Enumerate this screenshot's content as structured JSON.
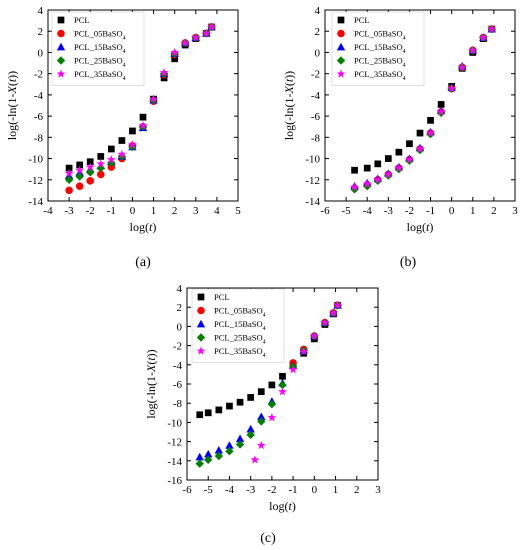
{
  "chart_data": [
    {
      "type": "scatter",
      "panel_label": "(a)",
      "xlabel_pre": "log(",
      "xlabel_var": "t",
      "xlabel_post": ")",
      "ylabel_pre": "log(-ln(1-",
      "ylabel_var": "X",
      "ylabel_mid": "(",
      "ylabel_var2": "t",
      "ylabel_post": "))",
      "xlim": [
        -4,
        5
      ],
      "ylim": [
        -14,
        4
      ],
      "xticks": [
        -4,
        -3,
        -2,
        -1,
        0,
        1,
        2,
        3,
        4,
        5
      ],
      "yticks": [
        -14,
        -12,
        -10,
        -8,
        -6,
        -4,
        -2,
        0,
        2,
        4
      ],
      "legend_position": "top-left",
      "series": [
        {
          "name": "PCL",
          "marker": "square",
          "color": "#000000",
          "points": [
            [
              -3.0,
              -10.9
            ],
            [
              -2.5,
              -10.6
            ],
            [
              -2.0,
              -10.3
            ],
            [
              -1.5,
              -9.8
            ],
            [
              -1.0,
              -9.1
            ],
            [
              -0.5,
              -8.3
            ],
            [
              0.0,
              -7.4
            ],
            [
              0.5,
              -6.1
            ],
            [
              1.0,
              -4.4
            ],
            [
              1.5,
              -2.4
            ],
            [
              2.0,
              -0.6
            ],
            [
              2.5,
              0.7
            ],
            [
              3.0,
              1.3
            ],
            [
              3.5,
              1.8
            ],
            [
              3.75,
              2.4
            ]
          ]
        },
        {
          "name": "PCL_05BaSO4",
          "marker": "circle",
          "color": "#ff0000",
          "points": [
            [
              -3.0,
              -13.0
            ],
            [
              -2.5,
              -12.6
            ],
            [
              -2.0,
              -12.1
            ],
            [
              -1.5,
              -11.5
            ],
            [
              -1.0,
              -10.8
            ],
            [
              -0.5,
              -10.0
            ],
            [
              0.0,
              -8.8
            ],
            [
              0.5,
              -7.0
            ],
            [
              1.0,
              -4.6
            ],
            [
              1.5,
              -2.1
            ],
            [
              2.0,
              -0.2
            ],
            [
              2.5,
              0.9
            ],
            [
              3.0,
              1.4
            ],
            [
              3.5,
              1.8
            ],
            [
              3.75,
              2.4
            ]
          ]
        },
        {
          "name": "PCL_15BaSO4",
          "marker": "triangle",
          "color": "#0000ff",
          "points": [
            [
              -3.0,
              -11.6
            ],
            [
              -2.5,
              -11.3
            ],
            [
              -2.0,
              -11.0
            ],
            [
              -1.5,
              -10.7
            ],
            [
              -1.0,
              -10.3
            ],
            [
              -0.5,
              -9.8
            ],
            [
              0.0,
              -8.9
            ],
            [
              0.5,
              -7.1
            ],
            [
              1.0,
              -4.5
            ],
            [
              1.5,
              -2.0
            ],
            [
              2.0,
              -0.1
            ],
            [
              2.5,
              0.9
            ],
            [
              3.0,
              1.4
            ],
            [
              3.5,
              1.8
            ],
            [
              3.75,
              2.4
            ]
          ]
        },
        {
          "name": "PCL_25BaSO4",
          "marker": "diamond",
          "color": "#008000",
          "points": [
            [
              -3.0,
              -12.0
            ],
            [
              -2.5,
              -11.7
            ],
            [
              -2.0,
              -11.3
            ],
            [
              -1.5,
              -10.9
            ],
            [
              -1.0,
              -10.4
            ],
            [
              -0.5,
              -9.8
            ],
            [
              0.0,
              -8.9
            ],
            [
              0.5,
              -7.0
            ],
            [
              1.0,
              -4.5
            ],
            [
              1.5,
              -2.0
            ],
            [
              2.0,
              -0.1
            ],
            [
              2.5,
              0.9
            ],
            [
              3.0,
              1.4
            ],
            [
              3.5,
              1.8
            ],
            [
              3.75,
              2.4
            ]
          ]
        },
        {
          "name": "PCL_35BaSO4",
          "marker": "star",
          "color": "#ff00ff",
          "points": [
            [
              -3.0,
              -11.4
            ],
            [
              -2.5,
              -11.1
            ],
            [
              -2.0,
              -10.8
            ],
            [
              -1.5,
              -10.5
            ],
            [
              -1.0,
              -10.1
            ],
            [
              -0.5,
              -9.6
            ],
            [
              0.0,
              -8.7
            ],
            [
              0.5,
              -6.9
            ],
            [
              1.0,
              -4.4
            ],
            [
              1.5,
              -1.9
            ],
            [
              2.0,
              0.0
            ],
            [
              2.5,
              0.9
            ],
            [
              3.0,
              1.4
            ],
            [
              3.5,
              1.8
            ],
            [
              3.75,
              2.4
            ]
          ]
        }
      ]
    },
    {
      "type": "scatter",
      "panel_label": "(b)",
      "xlabel_pre": "log(",
      "xlabel_var": "t",
      "xlabel_post": ")",
      "ylabel_pre": "log(-ln(1-",
      "ylabel_var": "X",
      "ylabel_mid": "(",
      "ylabel_var2": "t",
      "ylabel_post": "))",
      "xlim": [
        -6,
        3
      ],
      "ylim": [
        -14,
        4
      ],
      "xticks": [
        -6,
        -5,
        -4,
        -3,
        -2,
        -1,
        0,
        1,
        2,
        3
      ],
      "yticks": [
        -14,
        -12,
        -10,
        -8,
        -6,
        -4,
        -2,
        0,
        2,
        4
      ],
      "legend_position": "top-left",
      "series": [
        {
          "name": "PCL",
          "marker": "square",
          "color": "#000000",
          "points": [
            [
              -4.6,
              -11.1
            ],
            [
              -4.0,
              -10.9
            ],
            [
              -3.5,
              -10.5
            ],
            [
              -3.0,
              -10.0
            ],
            [
              -2.5,
              -9.4
            ],
            [
              -2.0,
              -8.6
            ],
            [
              -1.5,
              -7.6
            ],
            [
              -1.0,
              -6.4
            ],
            [
              -0.5,
              -4.9
            ],
            [
              0.0,
              -3.2
            ],
            [
              0.5,
              -1.5
            ],
            [
              1.0,
              0.0
            ],
            [
              1.5,
              1.3
            ],
            [
              1.9,
              2.2
            ]
          ]
        },
        {
          "name": "PCL_05BaSO4",
          "marker": "circle",
          "color": "#ff0000",
          "points": [
            [
              -4.6,
              -12.8
            ],
            [
              -4.0,
              -12.5
            ],
            [
              -3.5,
              -12.0
            ],
            [
              -3.0,
              -11.5
            ],
            [
              -2.5,
              -10.9
            ],
            [
              -2.0,
              -10.1
            ],
            [
              -1.5,
              -9.1
            ],
            [
              -1.0,
              -7.6
            ],
            [
              -0.5,
              -5.6
            ],
            [
              0.0,
              -3.4
            ],
            [
              0.5,
              -1.4
            ],
            [
              1.0,
              0.2
            ],
            [
              1.5,
              1.4
            ],
            [
              1.9,
              2.2
            ]
          ]
        },
        {
          "name": "PCL_15BaSO4",
          "marker": "triangle",
          "color": "#0000ff",
          "points": [
            [
              -4.6,
              -12.6
            ],
            [
              -4.0,
              -12.3
            ],
            [
              -3.5,
              -11.9
            ],
            [
              -3.0,
              -11.4
            ],
            [
              -2.5,
              -10.8
            ],
            [
              -2.0,
              -10.0
            ],
            [
              -1.5,
              -9.0
            ],
            [
              -1.0,
              -7.5
            ],
            [
              -0.5,
              -5.5
            ],
            [
              0.0,
              -3.3
            ],
            [
              0.5,
              -1.3
            ],
            [
              1.0,
              0.2
            ],
            [
              1.5,
              1.4
            ],
            [
              1.9,
              2.2
            ]
          ]
        },
        {
          "name": "PCL_25BaSO4",
          "marker": "diamond",
          "color": "#008000",
          "points": [
            [
              -4.6,
              -12.9
            ],
            [
              -4.0,
              -12.6
            ],
            [
              -3.5,
              -12.1
            ],
            [
              -3.0,
              -11.6
            ],
            [
              -2.5,
              -11.0
            ],
            [
              -2.0,
              -10.2
            ],
            [
              -1.5,
              -9.2
            ],
            [
              -1.0,
              -7.7
            ],
            [
              -0.5,
              -5.7
            ],
            [
              0.0,
              -3.4
            ],
            [
              0.5,
              -1.4
            ],
            [
              1.0,
              0.2
            ],
            [
              1.5,
              1.4
            ],
            [
              1.9,
              2.2
            ]
          ]
        },
        {
          "name": "PCL_35BaSO4",
          "marker": "star",
          "color": "#ff00ff",
          "points": [
            [
              -4.6,
              -12.7
            ],
            [
              -4.0,
              -12.4
            ],
            [
              -3.5,
              -12.0
            ],
            [
              -3.0,
              -11.5
            ],
            [
              -2.5,
              -10.9
            ],
            [
              -2.0,
              -10.1
            ],
            [
              -1.5,
              -9.1
            ],
            [
              -1.0,
              -7.6
            ],
            [
              -0.5,
              -5.6
            ],
            [
              0.0,
              -3.4
            ],
            [
              0.5,
              -1.4
            ],
            [
              1.0,
              0.2
            ],
            [
              1.5,
              1.4
            ],
            [
              1.9,
              2.2
            ]
          ]
        }
      ]
    },
    {
      "type": "scatter",
      "panel_label": "(c)",
      "xlabel_pre": "log(",
      "xlabel_var": "t",
      "xlabel_post": ")",
      "ylabel_pre": "log(-ln(1-",
      "ylabel_var": "X",
      "ylabel_mid": "(",
      "ylabel_var2": "t",
      "ylabel_post": "))",
      "xlim": [
        -6,
        3
      ],
      "ylim": [
        -16,
        4
      ],
      "xticks": [
        -6,
        -5,
        -4,
        -3,
        -2,
        -1,
        0,
        1,
        2,
        3
      ],
      "yticks": [
        -16,
        -14,
        -12,
        -10,
        -8,
        -6,
        -4,
        -2,
        0,
        2,
        4
      ],
      "legend_position": "top-left",
      "series": [
        {
          "name": "PCL",
          "marker": "square",
          "color": "#000000",
          "points": [
            [
              -5.4,
              -9.2
            ],
            [
              -5.0,
              -9.0
            ],
            [
              -4.5,
              -8.7
            ],
            [
              -4.0,
              -8.3
            ],
            [
              -3.5,
              -7.9
            ],
            [
              -3.0,
              -7.4
            ],
            [
              -2.5,
              -6.8
            ],
            [
              -2.0,
              -6.1
            ],
            [
              -1.5,
              -5.2
            ],
            [
              -1.0,
              -4.1
            ],
            [
              -0.5,
              -2.8
            ],
            [
              0.0,
              -1.3
            ],
            [
              0.5,
              0.2
            ],
            [
              0.9,
              1.3
            ],
            [
              1.1,
              2.2
            ]
          ]
        },
        {
          "name": "PCL_05BaSO4",
          "marker": "circle",
          "color": "#ff0000",
          "points": [
            [
              -1.0,
              -3.8
            ],
            [
              -0.5,
              -2.4
            ],
            [
              0.0,
              -1.0
            ],
            [
              0.5,
              0.4
            ],
            [
              0.9,
              1.4
            ],
            [
              1.1,
              2.2
            ]
          ]
        },
        {
          "name": "PCL_15BaSO4",
          "marker": "triangle",
          "color": "#0000ff",
          "points": [
            [
              -5.4,
              -13.6
            ],
            [
              -5.0,
              -13.3
            ],
            [
              -4.5,
              -12.9
            ],
            [
              -4.0,
              -12.4
            ],
            [
              -3.5,
              -11.7
            ],
            [
              -3.0,
              -10.7
            ],
            [
              -2.5,
              -9.4
            ],
            [
              -2.0,
              -7.8
            ],
            [
              -1.5,
              -5.9
            ],
            [
              -1.0,
              -4.1
            ],
            [
              -0.5,
              -2.5
            ],
            [
              0.0,
              -1.0
            ],
            [
              0.5,
              0.4
            ],
            [
              0.9,
              1.4
            ],
            [
              1.1,
              2.2
            ]
          ]
        },
        {
          "name": "PCL_25BaSO4",
          "marker": "diamond",
          "color": "#008000",
          "points": [
            [
              -5.4,
              -14.3
            ],
            [
              -5.0,
              -13.9
            ],
            [
              -4.5,
              -13.5
            ],
            [
              -4.0,
              -13.0
            ],
            [
              -3.5,
              -12.3
            ],
            [
              -3.0,
              -11.3
            ],
            [
              -2.5,
              -9.9
            ],
            [
              -2.0,
              -8.1
            ],
            [
              -1.5,
              -6.1
            ],
            [
              -1.0,
              -4.2
            ],
            [
              -0.5,
              -2.5
            ],
            [
              0.0,
              -1.0
            ],
            [
              0.5,
              0.4
            ],
            [
              0.9,
              1.4
            ],
            [
              1.1,
              2.2
            ]
          ]
        },
        {
          "name": "PCL_35BaSO4",
          "marker": "star",
          "color": "#ff00ff",
          "points": [
            [
              -2.8,
              -13.9
            ],
            [
              -2.5,
              -12.4
            ],
            [
              -2.0,
              -9.5
            ],
            [
              -1.5,
              -6.8
            ],
            [
              -1.0,
              -4.5
            ],
            [
              -0.5,
              -2.6
            ],
            [
              0.0,
              -1.0
            ],
            [
              0.5,
              0.4
            ],
            [
              0.9,
              1.4
            ],
            [
              1.1,
              2.2
            ]
          ]
        }
      ]
    }
  ]
}
